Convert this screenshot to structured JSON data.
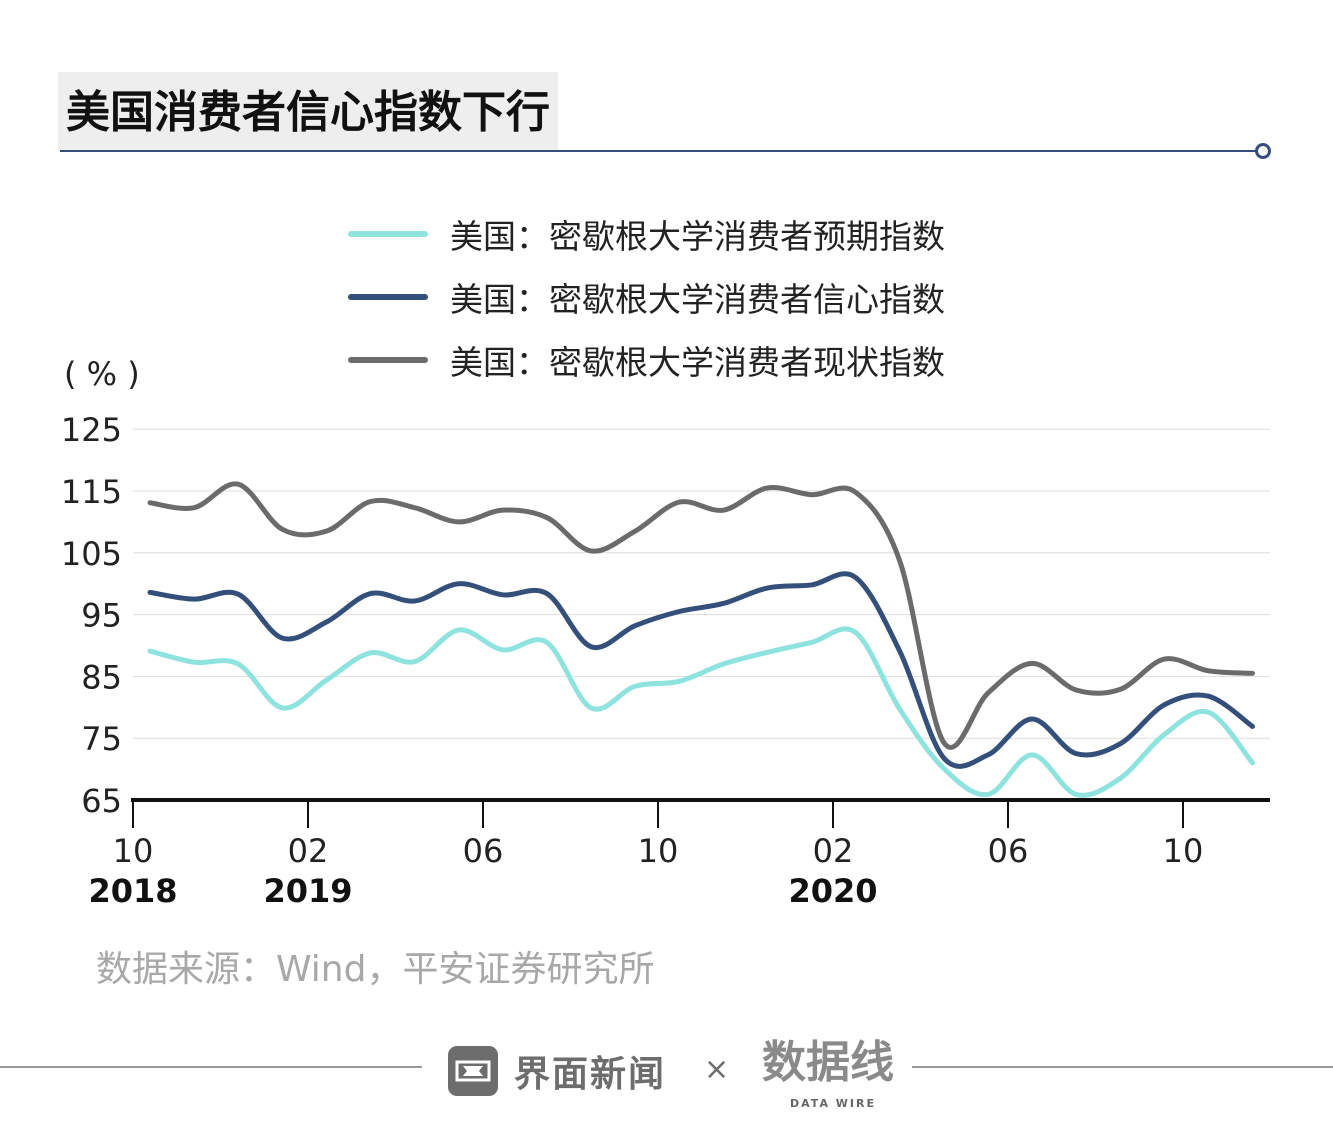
{
  "title": "美国消费者信心指数下行",
  "unit": "( % )",
  "source": "数据来源：Wind，平安证券研究所",
  "footer": {
    "brand": "界面新闻",
    "times": "×",
    "partner_logo": "数据线",
    "partner_sub": "DATA WIRE"
  },
  "chart_data": {
    "type": "line",
    "title": "美国消费者信心指数下行",
    "ylabel": "( % )",
    "ylim": [
      65,
      125
    ],
    "yticks": [
      65,
      75,
      85,
      95,
      105,
      115,
      125
    ],
    "grid": true,
    "legend_position": "top-center",
    "x": [
      "2018-10",
      "2018-11",
      "2018-12",
      "2019-01",
      "2019-02",
      "2019-03",
      "2019-04",
      "2019-05",
      "2019-06",
      "2019-07",
      "2019-08",
      "2019-09",
      "2019-10",
      "2019-11",
      "2019-12",
      "2020-01",
      "2020-02",
      "2020-03",
      "2020-04",
      "2020-05",
      "2020-06",
      "2020-07",
      "2020-08",
      "2020-09",
      "2020-10",
      "2020-11"
    ],
    "xticks": [
      {
        "index": 0,
        "label": "10",
        "year": "2018"
      },
      {
        "index": 4,
        "label": "02",
        "year": "2019"
      },
      {
        "index": 8,
        "label": "06",
        "year": ""
      },
      {
        "index": 12,
        "label": "10",
        "year": ""
      },
      {
        "index": 16,
        "label": "02",
        "year": "2020"
      },
      {
        "index": 20,
        "label": "06",
        "year": ""
      },
      {
        "index": 24,
        "label": "10",
        "year": ""
      }
    ],
    "series": [
      {
        "name": "美国：密歇根大学消费者预期指数",
        "color": "#8ee3de",
        "values": [
          89.1,
          87.3,
          87.0,
          79.9,
          84.4,
          88.8,
          87.4,
          92.5,
          89.3,
          90.5,
          79.9,
          83.4,
          84.2,
          87.0,
          88.9,
          90.5,
          92.1,
          79.7,
          70.1,
          65.9,
          72.3,
          65.9,
          68.5,
          75.6,
          79.2,
          71.0
        ]
      },
      {
        "name": "美国：密歇根大学消费者信心指数",
        "color": "#34507a",
        "values": [
          98.6,
          97.5,
          98.3,
          91.2,
          93.8,
          98.4,
          97.2,
          100.0,
          98.2,
          98.4,
          89.8,
          93.2,
          95.5,
          96.8,
          99.3,
          99.8,
          101.0,
          89.1,
          71.8,
          72.3,
          78.1,
          72.5,
          74.1,
          80.4,
          81.8,
          76.9
        ]
      },
      {
        "name": "美国：密歇根大学消费者现状指数",
        "color": "#6b6b6b",
        "values": [
          113.1,
          112.3,
          116.1,
          108.8,
          108.5,
          113.3,
          112.3,
          110.0,
          111.9,
          110.7,
          105.3,
          108.5,
          113.2,
          111.9,
          115.5,
          114.4,
          114.8,
          103.7,
          74.3,
          82.3,
          87.1,
          82.8,
          82.9,
          87.8,
          85.9,
          85.5
        ]
      }
    ]
  }
}
